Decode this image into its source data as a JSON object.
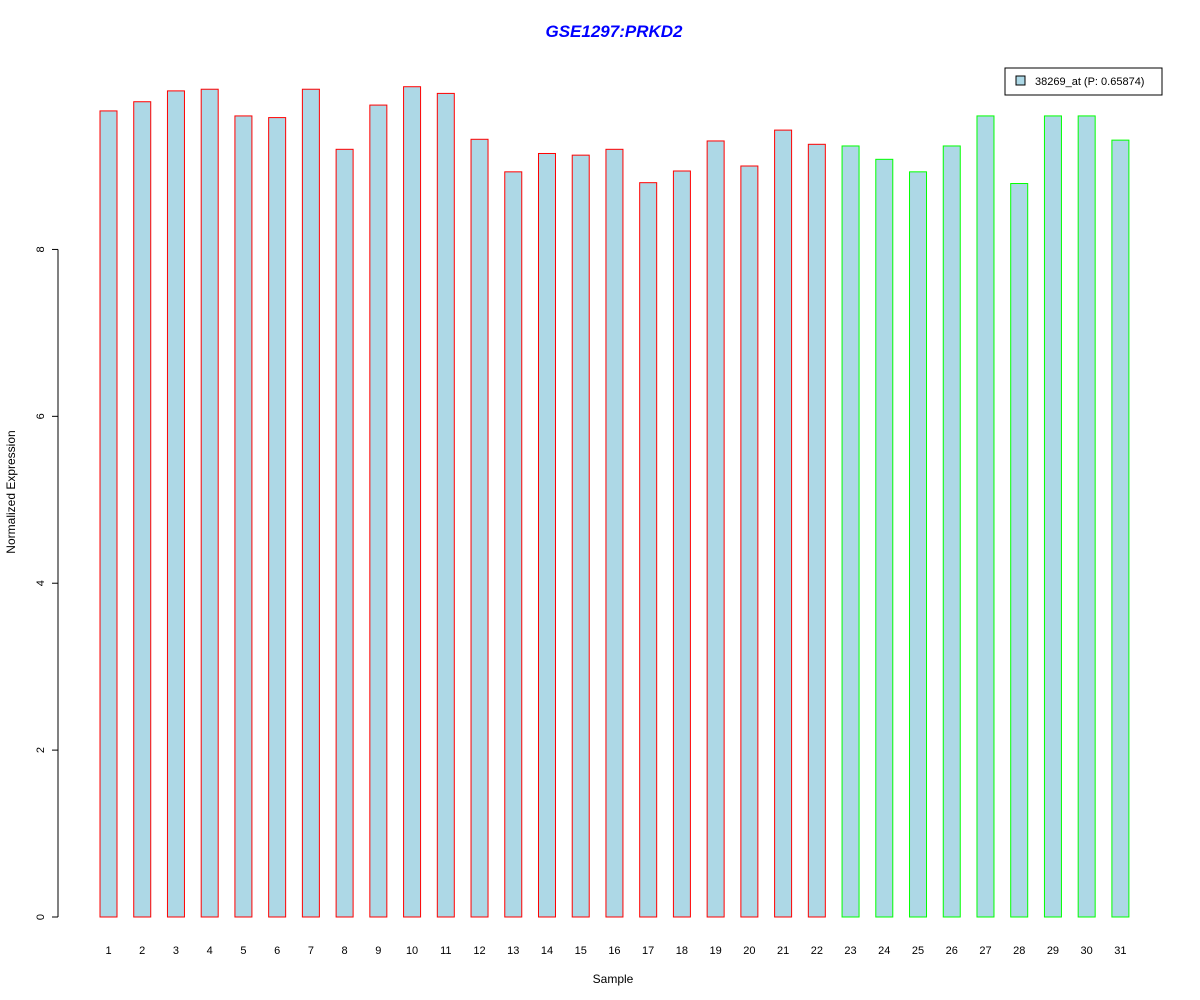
{
  "chart_data": {
    "type": "bar",
    "title": "GSE1297:PRKD2",
    "xlabel": "Sample",
    "ylabel": "Normalized Expression",
    "categories": [
      "1",
      "2",
      "3",
      "4",
      "5",
      "6",
      "7",
      "8",
      "9",
      "10",
      "11",
      "12",
      "13",
      "14",
      "15",
      "16",
      "17",
      "18",
      "19",
      "20",
      "21",
      "22",
      "23",
      "24",
      "25",
      "26",
      "27",
      "28",
      "29",
      "30",
      "31"
    ],
    "series": [
      {
        "name": "38269_at (P: 0.65874)",
        "values": [
          9.66,
          9.77,
          9.9,
          9.92,
          9.6,
          9.58,
          9.92,
          9.2,
          9.73,
          9.95,
          9.87,
          9.32,
          8.93,
          9.15,
          9.13,
          9.2,
          8.8,
          8.94,
          9.3,
          9.0,
          9.43,
          9.26,
          9.24,
          9.08,
          8.93,
          9.24,
          9.6,
          8.79,
          9.6,
          9.6,
          9.31
        ]
      }
    ],
    "bar_fill": "#add8e6",
    "bar_border_colors": [
      "#ff0000",
      "#ff0000",
      "#ff0000",
      "#ff0000",
      "#ff0000",
      "#ff0000",
      "#ff0000",
      "#ff0000",
      "#ff0000",
      "#ff0000",
      "#ff0000",
      "#ff0000",
      "#ff0000",
      "#ff0000",
      "#ff0000",
      "#ff0000",
      "#ff0000",
      "#ff0000",
      "#ff0000",
      "#ff0000",
      "#ff0000",
      "#ff0000",
      "#00ff00",
      "#00ff00",
      "#00ff00",
      "#00ff00",
      "#00ff00",
      "#00ff00",
      "#00ff00",
      "#00ff00",
      "#00ff00"
    ],
    "title_color": "#0000ff",
    "yticks": [
      0,
      2,
      4,
      6,
      8
    ],
    "ylim": [
      0,
      10.45
    ],
    "grid": false,
    "legend_position": "top-right"
  }
}
